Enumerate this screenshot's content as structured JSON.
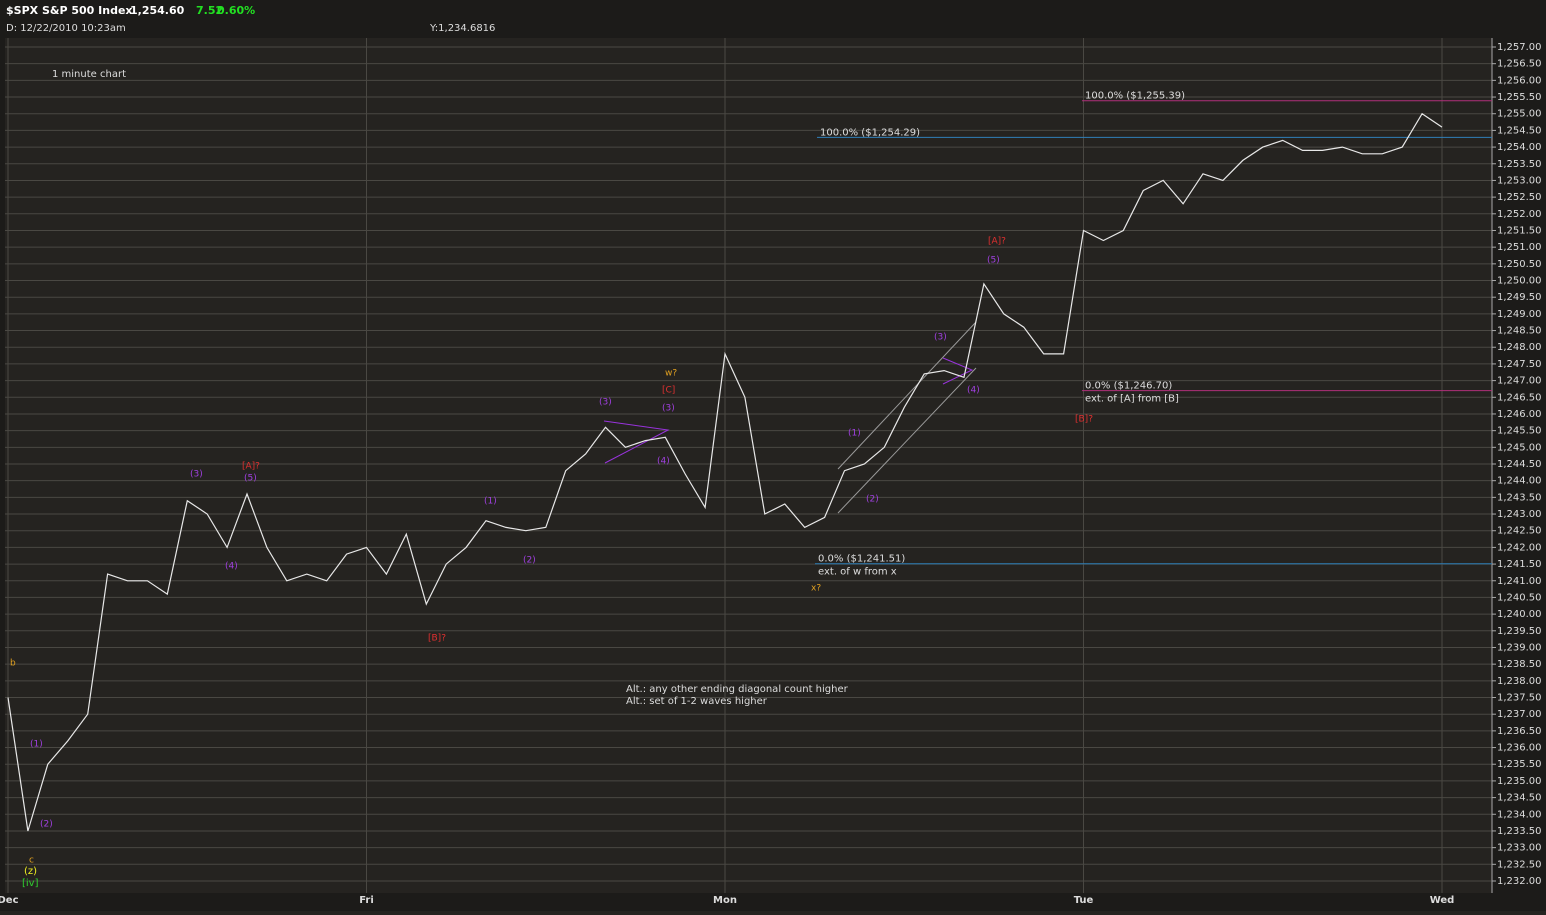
{
  "header": {
    "symbol": "$SPX S&P 500 Index",
    "last": "1,254.60",
    "change": "7.52",
    "change_pct": "0.60%",
    "date": "D: 12/22/2010 10:23am",
    "cursor": "Y:1,234.6816"
  },
  "chart_data": {
    "type": "line",
    "subtitle": "1 minute chart",
    "categories": [
      "Dec",
      null,
      null,
      null,
      null,
      null,
      null,
      null,
      null,
      null,
      null,
      null,
      null,
      null,
      null,
      null,
      null,
      null,
      "Fri",
      null,
      null,
      null,
      null,
      null,
      null,
      null,
      null,
      null,
      null,
      null,
      null,
      null,
      null,
      null,
      null,
      null,
      "Mon",
      null,
      null,
      null,
      null,
      null,
      null,
      null,
      null,
      null,
      null,
      null,
      null,
      null,
      null,
      null,
      null,
      null,
      "Tue",
      null,
      null,
      null,
      null,
      null,
      null,
      null,
      null,
      null,
      null,
      null,
      null,
      null,
      null,
      null,
      null,
      null,
      "Wed"
    ],
    "series": [
      {
        "name": "$SPX",
        "color": "#e8e8e8",
        "values": [
          1237.5,
          1233.5,
          1235.5,
          1236.2,
          1237,
          1241.2,
          1241,
          1241,
          1240.6,
          1243.4,
          1243,
          1242,
          1243.6,
          1242,
          1241,
          1241.2,
          1241,
          1241.8,
          1242,
          1241.2,
          1242.4,
          1240.3,
          1241.5,
          1242,
          1242.8,
          1242.6,
          1242.5,
          1242.6,
          1244.3,
          1244.8,
          1245.6,
          1245,
          1245.2,
          1245.3,
          1244.2,
          1243.2,
          1247.8,
          1246.5,
          1243,
          1243.3,
          1242.6,
          1242.9,
          1244.3,
          1244.5,
          1245,
          1246.2,
          1247.2,
          1247.3,
          1247.1,
          1249.9,
          1249,
          1248.6,
          1247.8,
          1247.8,
          1251.5,
          1251.2,
          1251.5,
          1252.7,
          1253,
          1252.3,
          1253.2,
          1253,
          1253.6,
          1254,
          1254.2,
          1253.9,
          1253.9,
          1254,
          1253.8,
          1253.8,
          1254,
          1255,
          1254.6
        ]
      }
    ],
    "ylim": [
      1231.64,
      1257.27
    ],
    "yticks": [
      {
        "value": 1232,
        "label": "1,232.00"
      },
      {
        "value": 1232.5,
        "label": "1,232.50"
      },
      {
        "value": 1233,
        "label": "1,233.00"
      },
      {
        "value": 1233.5,
        "label": "1,233.50"
      },
      {
        "value": 1234,
        "label": "1,234.00"
      },
      {
        "value": 1234.5,
        "label": "1,234.50"
      },
      {
        "value": 1235,
        "label": "1,235.00"
      },
      {
        "value": 1235.5,
        "label": "1,235.50"
      },
      {
        "value": 1236,
        "label": "1,236.00"
      },
      {
        "value": 1236.5,
        "label": "1,236.50"
      },
      {
        "value": 1237,
        "label": "1,237.00"
      },
      {
        "value": 1237.5,
        "label": "1,237.50"
      },
      {
        "value": 1238,
        "label": "1,238.00"
      },
      {
        "value": 1238.5,
        "label": "1,238.50"
      },
      {
        "value": 1239,
        "label": "1,239.00"
      },
      {
        "value": 1239.5,
        "label": "1,239.50"
      },
      {
        "value": 1240,
        "label": "1,240.00"
      },
      {
        "value": 1240.5,
        "label": "1,240.50"
      },
      {
        "value": 1241,
        "label": "1,241.00"
      },
      {
        "value": 1241.5,
        "label": "1,241.50"
      },
      {
        "value": 1242,
        "label": "1,242.00"
      },
      {
        "value": 1242.5,
        "label": "1,242.50"
      },
      {
        "value": 1243,
        "label": "1,243.00"
      },
      {
        "value": 1243.5,
        "label": "1,243.50"
      },
      {
        "value": 1244,
        "label": "1,244.00"
      },
      {
        "value": 1244.5,
        "label": "1,244.50"
      },
      {
        "value": 1245,
        "label": "1,245.00"
      },
      {
        "value": 1245.5,
        "label": "1,245.50"
      },
      {
        "value": 1246,
        "label": "1,246.00"
      },
      {
        "value": 1246.5,
        "label": "1,246.50"
      },
      {
        "value": 1247,
        "label": "1,247.00"
      },
      {
        "value": 1247.5,
        "label": "1,247.50"
      },
      {
        "value": 1248,
        "label": "1,248.00"
      },
      {
        "value": 1248.5,
        "label": "1,248.50"
      },
      {
        "value": 1249,
        "label": "1,249.00"
      },
      {
        "value": 1249.5,
        "label": "1,249.50"
      },
      {
        "value": 1250,
        "label": "1,250.00"
      },
      {
        "value": 1250.5,
        "label": "1,250.50"
      },
      {
        "value": 1251,
        "label": "1,251.00"
      },
      {
        "value": 1251.5,
        "label": "1,251.50"
      },
      {
        "value": 1252,
        "label": "1,252.00"
      },
      {
        "value": 1252.5,
        "label": "1,252.50"
      },
      {
        "value": 1253,
        "label": "1,253.00"
      },
      {
        "value": 1253.5,
        "label": "1,253.50"
      },
      {
        "value": 1254,
        "label": "1,254.00"
      },
      {
        "value": 1254.5,
        "label": "1,254.50"
      },
      {
        "value": 1255,
        "label": "1,255.00"
      },
      {
        "value": 1255.5,
        "label": "1,255.50"
      },
      {
        "value": 1256,
        "label": "1,256.00"
      },
      {
        "value": 1256.5,
        "label": "1,256.50"
      },
      {
        "value": 1257,
        "label": "1,257.00"
      }
    ],
    "grid": true,
    "levels": [
      {
        "value": 1255.39,
        "label": "100.0%  ($1,255.39)",
        "color": "#b0307a"
      },
      {
        "value": 1254.29,
        "label": "100.0%  ($1,254.29)",
        "color": "#2f7fb8"
      },
      {
        "value": 1246.7,
        "label": "0.0%  ($1,246.70)",
        "color": "#b0307a",
        "note": "ext. of [A] from [B]"
      },
      {
        "value": 1241.51,
        "label": "0.0%  ($1,241.51)",
        "color": "#2f7fb8",
        "note": "ext. of w from x"
      }
    ],
    "annotations": [
      "b",
      "(1)",
      "(2)",
      "c",
      "(z)",
      "[iv]",
      "(3)",
      "(4)",
      "[A]?",
      "(5)",
      "(1)",
      "(2)",
      "[B]?",
      "(3)",
      "(4)",
      "w?",
      "[C]",
      "(3)",
      "x?",
      "(1)",
      "(2)",
      "(3)",
      "(4)",
      "(5)",
      "[A]?",
      "[B]?"
    ],
    "notes": [
      "Alt.: any other ending diagonal count higher",
      "Alt.: set of 1-2 waves higher"
    ]
  }
}
